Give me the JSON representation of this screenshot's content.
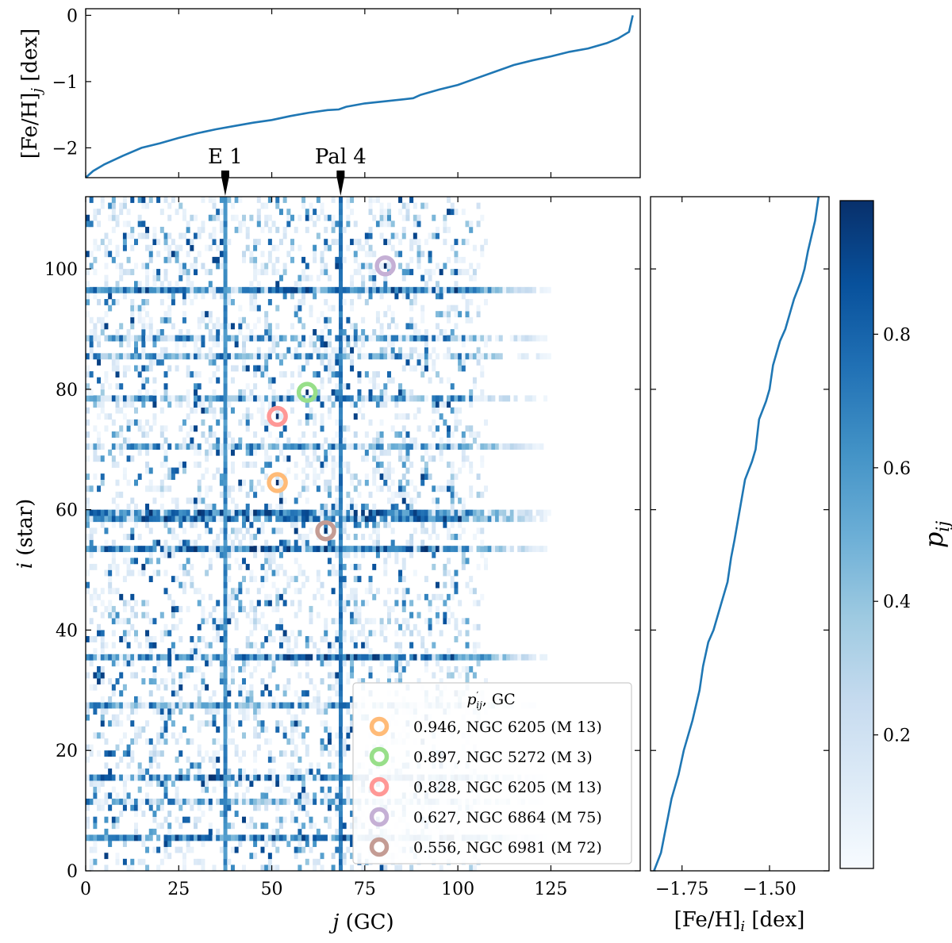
{
  "chart_data": [
    {
      "panel": "top",
      "type": "line",
      "ylabel": "[Fe/H]",
      "ylabel_sub": "j",
      "ylabel_unit": " [dex]",
      "xlim": [
        0,
        149
      ],
      "ylim": [
        -2.45,
        0.1
      ],
      "yticks": [
        0,
        -1,
        -2
      ],
      "ytick_labels": [
        "0",
        "−1",
        "−2"
      ],
      "color": "#1f77b4",
      "x": [
        0,
        2,
        5,
        10,
        15,
        20,
        25,
        30,
        35,
        40,
        45,
        50,
        55,
        60,
        65,
        68,
        70,
        75,
        80,
        85,
        88,
        90,
        95,
        100,
        105,
        110,
        115,
        120,
        125,
        130,
        135,
        140,
        143,
        146,
        147
      ],
      "y": [
        -2.45,
        -2.35,
        -2.25,
        -2.12,
        -2.0,
        -1.93,
        -1.85,
        -1.78,
        -1.72,
        -1.67,
        -1.62,
        -1.58,
        -1.52,
        -1.47,
        -1.43,
        -1.42,
        -1.38,
        -1.33,
        -1.3,
        -1.27,
        -1.25,
        -1.2,
        -1.12,
        -1.05,
        -0.95,
        -0.85,
        -0.75,
        -0.68,
        -0.62,
        -0.55,
        -0.5,
        -0.42,
        -0.35,
        -0.25,
        0.0
      ],
      "annotations": [
        {
          "label": "E 1",
          "x": 37
        },
        {
          "label": "Pal 4",
          "x": 68
        }
      ]
    },
    {
      "panel": "main",
      "type": "heatmap",
      "xlabel": "j",
      "xlabel_unit": " (GC)",
      "ylabel": "i",
      "ylabel_unit": " (star)",
      "xlim": [
        0,
        149
      ],
      "ylim": [
        0,
        112
      ],
      "xticks": [
        0,
        25,
        50,
        75,
        100,
        125
      ],
      "yticks": [
        0,
        20,
        40,
        60,
        80,
        100
      ],
      "colormap": "Blues",
      "vertical_bands": [
        37,
        68
      ],
      "horizontal_bands": [
        5,
        11,
        15,
        27,
        35,
        53,
        58,
        59,
        70,
        78,
        85,
        88,
        96
      ],
      "highlight_rows": [
        5,
        15,
        35,
        53,
        58,
        59,
        96
      ],
      "circles": [
        {
          "j": 51,
          "i": 64,
          "color": "#ffbb78"
        },
        {
          "j": 59,
          "i": 79,
          "color": "#98df8a"
        },
        {
          "j": 51,
          "i": 75,
          "color": "#ff9896"
        },
        {
          "j": 80,
          "i": 100,
          "color": "#c5b0d5"
        },
        {
          "j": 64,
          "i": 56,
          "color": "#c49c94"
        }
      ],
      "legend": {
        "title_main": "p",
        "title_sup": "′",
        "title_sub": "ij",
        "title_rest": ", GC",
        "placement": "lower-right",
        "entries": [
          {
            "label": "0.946, NGC 6205 (M 13)",
            "color": "#ffbb78"
          },
          {
            "label": "0.897, NGC 5272 (M 3)",
            "color": "#98df8a"
          },
          {
            "label": "0.828, NGC 6205 (M 13)",
            "color": "#ff9896"
          },
          {
            "label": "0.627, NGC 6864 (M 75)",
            "color": "#c5b0d5"
          },
          {
            "label": "0.556, NGC 6981 (M 72)",
            "color": "#c49c94"
          }
        ]
      }
    },
    {
      "panel": "right",
      "type": "line",
      "xlabel": "[Fe/H]",
      "xlabel_sub": "i",
      "xlabel_unit": " [dex]",
      "xlim": [
        -1.84,
        -1.33
      ],
      "ylim": [
        0,
        112
      ],
      "xticks": [
        -1.75,
        -1.5
      ],
      "xtick_labels": [
        "−1.75",
        "−1.50"
      ],
      "color": "#1f77b4",
      "x": [
        -1.83,
        -1.81,
        -1.8,
        -1.79,
        -1.78,
        -1.77,
        -1.76,
        -1.745,
        -1.72,
        -1.7,
        -1.69,
        -1.675,
        -1.66,
        -1.64,
        -1.62,
        -1.61,
        -1.6,
        -1.585,
        -1.57,
        -1.55,
        -1.54,
        -1.53,
        -1.51,
        -1.5,
        -1.49,
        -1.47,
        -1.455,
        -1.44,
        -1.43,
        -1.41,
        -1.4,
        -1.39,
        -1.37,
        -1.36
      ],
      "y": [
        0,
        3,
        6,
        9,
        12,
        14,
        16,
        20,
        25,
        30,
        34,
        38,
        40,
        44,
        48,
        52,
        55,
        60,
        65,
        68,
        70,
        75,
        78,
        80,
        84,
        88,
        90,
        93,
        95,
        98,
        100,
        103,
        108,
        112
      ]
    },
    {
      "panel": "colorbar",
      "type": "colorbar",
      "label": "p",
      "label_sub": "ij",
      "range": [
        0,
        1
      ],
      "ticks": [
        0.2,
        0.4,
        0.6,
        0.8
      ],
      "tick_labels": [
        "0.2",
        "0.4",
        "0.6",
        "0.8"
      ]
    }
  ]
}
